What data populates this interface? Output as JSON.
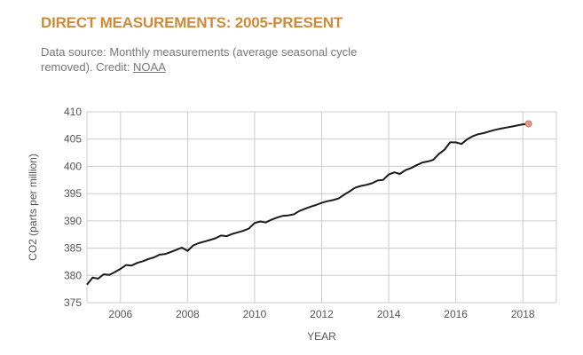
{
  "header": {
    "title": "DIRECT MEASUREMENTS: 2005-PRESENT",
    "source_text": "Data source: Monthly measurements (average seasonal cycle removed). Credit:",
    "credit_link": "NOAA"
  },
  "colors": {
    "title": "#d08a36",
    "line": "#1a1a1a",
    "endpoint": "#e39b88",
    "grid": "#cccccc",
    "axis_text": "#555555"
  },
  "chart_data": {
    "type": "line",
    "title": "",
    "xlabel": "YEAR",
    "ylabel": "CO2 (parts per million)",
    "xlim": [
      2005.0,
      2019.0
    ],
    "ylim": [
      375,
      410
    ],
    "xticks": [
      2006,
      2008,
      2010,
      2012,
      2014,
      2016,
      2018
    ],
    "yticks": [
      375,
      380,
      385,
      390,
      395,
      400,
      405,
      410
    ],
    "grid": true,
    "endpoint_marker": true,
    "series": [
      {
        "x": [
          2005.0,
          2005.17,
          2005.33,
          2005.5,
          2005.67,
          2005.83,
          2006.0,
          2006.17,
          2006.33,
          2006.5,
          2006.67,
          2006.83,
          2007.0,
          2007.17,
          2007.33,
          2007.5,
          2007.67,
          2007.83,
          2008.0,
          2008.17,
          2008.33,
          2008.5,
          2008.67,
          2008.83,
          2009.0,
          2009.17,
          2009.33,
          2009.5,
          2009.67,
          2009.83,
          2010.0,
          2010.17,
          2010.33,
          2010.5,
          2010.67,
          2010.83,
          2011.0,
          2011.17,
          2011.33,
          2011.5,
          2011.67,
          2011.83,
          2012.0,
          2012.17,
          2012.33,
          2012.5,
          2012.67,
          2012.83,
          2013.0,
          2013.17,
          2013.33,
          2013.5,
          2013.67,
          2013.83,
          2014.0,
          2014.17,
          2014.33,
          2014.5,
          2014.67,
          2014.83,
          2015.0,
          2015.17,
          2015.33,
          2015.5,
          2015.67,
          2015.83,
          2016.0,
          2016.17,
          2016.33,
          2016.5,
          2016.67,
          2016.83,
          2017.0,
          2017.17,
          2017.33,
          2017.5,
          2017.67,
          2017.83,
          2018.0,
          2018.17
        ],
        "y": [
          378.3,
          379.6,
          379.4,
          380.2,
          380.1,
          380.6,
          381.2,
          381.9,
          381.8,
          382.3,
          382.6,
          383.0,
          383.3,
          383.8,
          383.9,
          384.3,
          384.7,
          385.1,
          384.5,
          385.5,
          385.9,
          386.2,
          386.5,
          386.8,
          387.3,
          387.2,
          387.6,
          387.9,
          388.2,
          388.6,
          389.6,
          389.9,
          389.7,
          390.2,
          390.6,
          390.9,
          391.0,
          391.2,
          391.8,
          392.2,
          392.6,
          392.9,
          393.3,
          393.6,
          393.8,
          394.1,
          394.8,
          395.4,
          396.1,
          396.4,
          396.6,
          396.9,
          397.4,
          397.5,
          398.5,
          398.9,
          398.6,
          399.3,
          399.7,
          400.2,
          400.7,
          400.9,
          401.2,
          402.3,
          403.1,
          404.4,
          404.4,
          404.1,
          404.9,
          405.5,
          405.9,
          406.1,
          406.4,
          406.7,
          406.9,
          407.1,
          407.3,
          407.5,
          407.7,
          407.8
        ]
      }
    ]
  }
}
